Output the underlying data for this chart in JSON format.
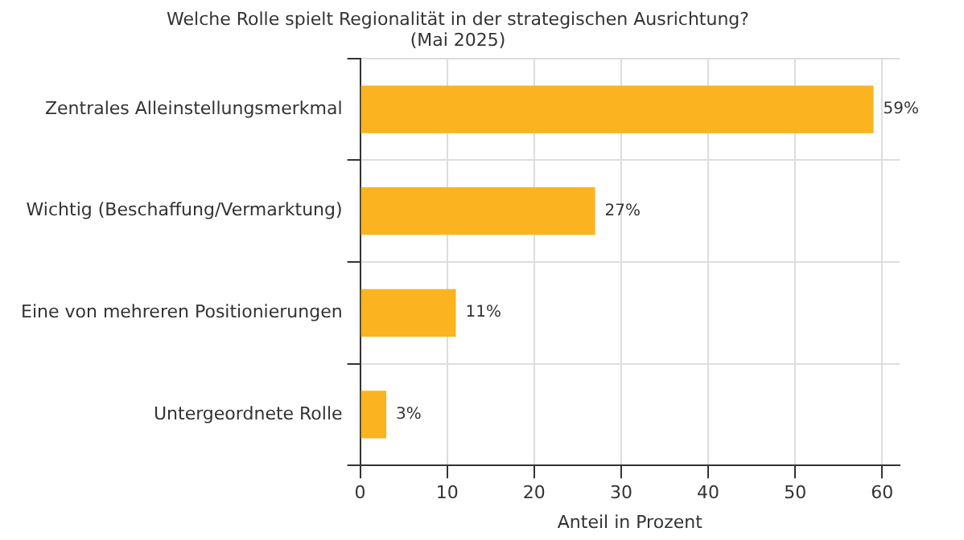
{
  "chart_data": {
    "type": "bar",
    "orientation": "horizontal",
    "title": "Welche Rolle spielt Regionalität in der strategischen Ausrichtung?",
    "subtitle": "(Mai 2025)",
    "xlabel": "Anteil in Prozent",
    "categories": [
      "Zentrales Alleinstellungsmerkmal",
      "Wichtig (Beschaffung/Vermarktung)",
      "Eine von mehreren Positionierungen",
      "Untergeordnete Rolle"
    ],
    "values": [
      59,
      27,
      11,
      3
    ],
    "value_labels": [
      "59%",
      "27%",
      "11%",
      "3%"
    ],
    "color": "#fbb41f",
    "xlim": [
      0,
      62
    ],
    "xticks": [
      0,
      10,
      20,
      30,
      40,
      50,
      60
    ],
    "grid": true
  }
}
